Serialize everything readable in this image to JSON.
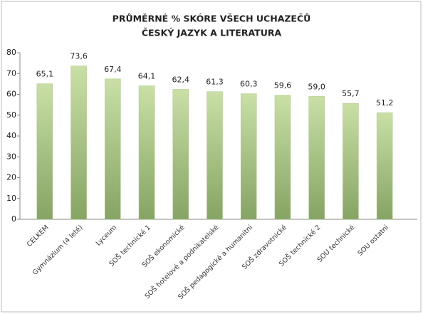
{
  "chart_data": {
    "type": "bar",
    "title": "PRŮMĚRNÉ % SKÓRE VŠECH UCHAZEČŮ",
    "subtitle": "ČESKÝ JAZYK A LITERATURA",
    "categories": [
      "CELKEM",
      "Gymnázium (4 leté)",
      "Lyceum",
      "SOŠ technické 1",
      "SOŠ ekonomické",
      "SOŠ hotelové a podnikatelské",
      "SOŠ pedagogické a humanitní",
      "SOŠ zdravotnické",
      "SOŠ technické 2",
      "SOU technické",
      "SOU ostatní"
    ],
    "values": [
      65.1,
      73.6,
      67.4,
      64.1,
      62.4,
      61.3,
      60.3,
      59.6,
      59.0,
      55.7,
      51.2
    ],
    "value_labels": [
      "65,1",
      "73,6",
      "67,4",
      "64,1",
      "62,4",
      "61,3",
      "60,3",
      "59,6",
      "59,0",
      "55,7",
      "51,2"
    ],
    "color": "#a9c686",
    "ylim": [
      0,
      80
    ],
    "yticks": [
      0,
      10,
      20,
      30,
      40,
      50,
      60,
      70,
      80
    ],
    "grid": false
  }
}
